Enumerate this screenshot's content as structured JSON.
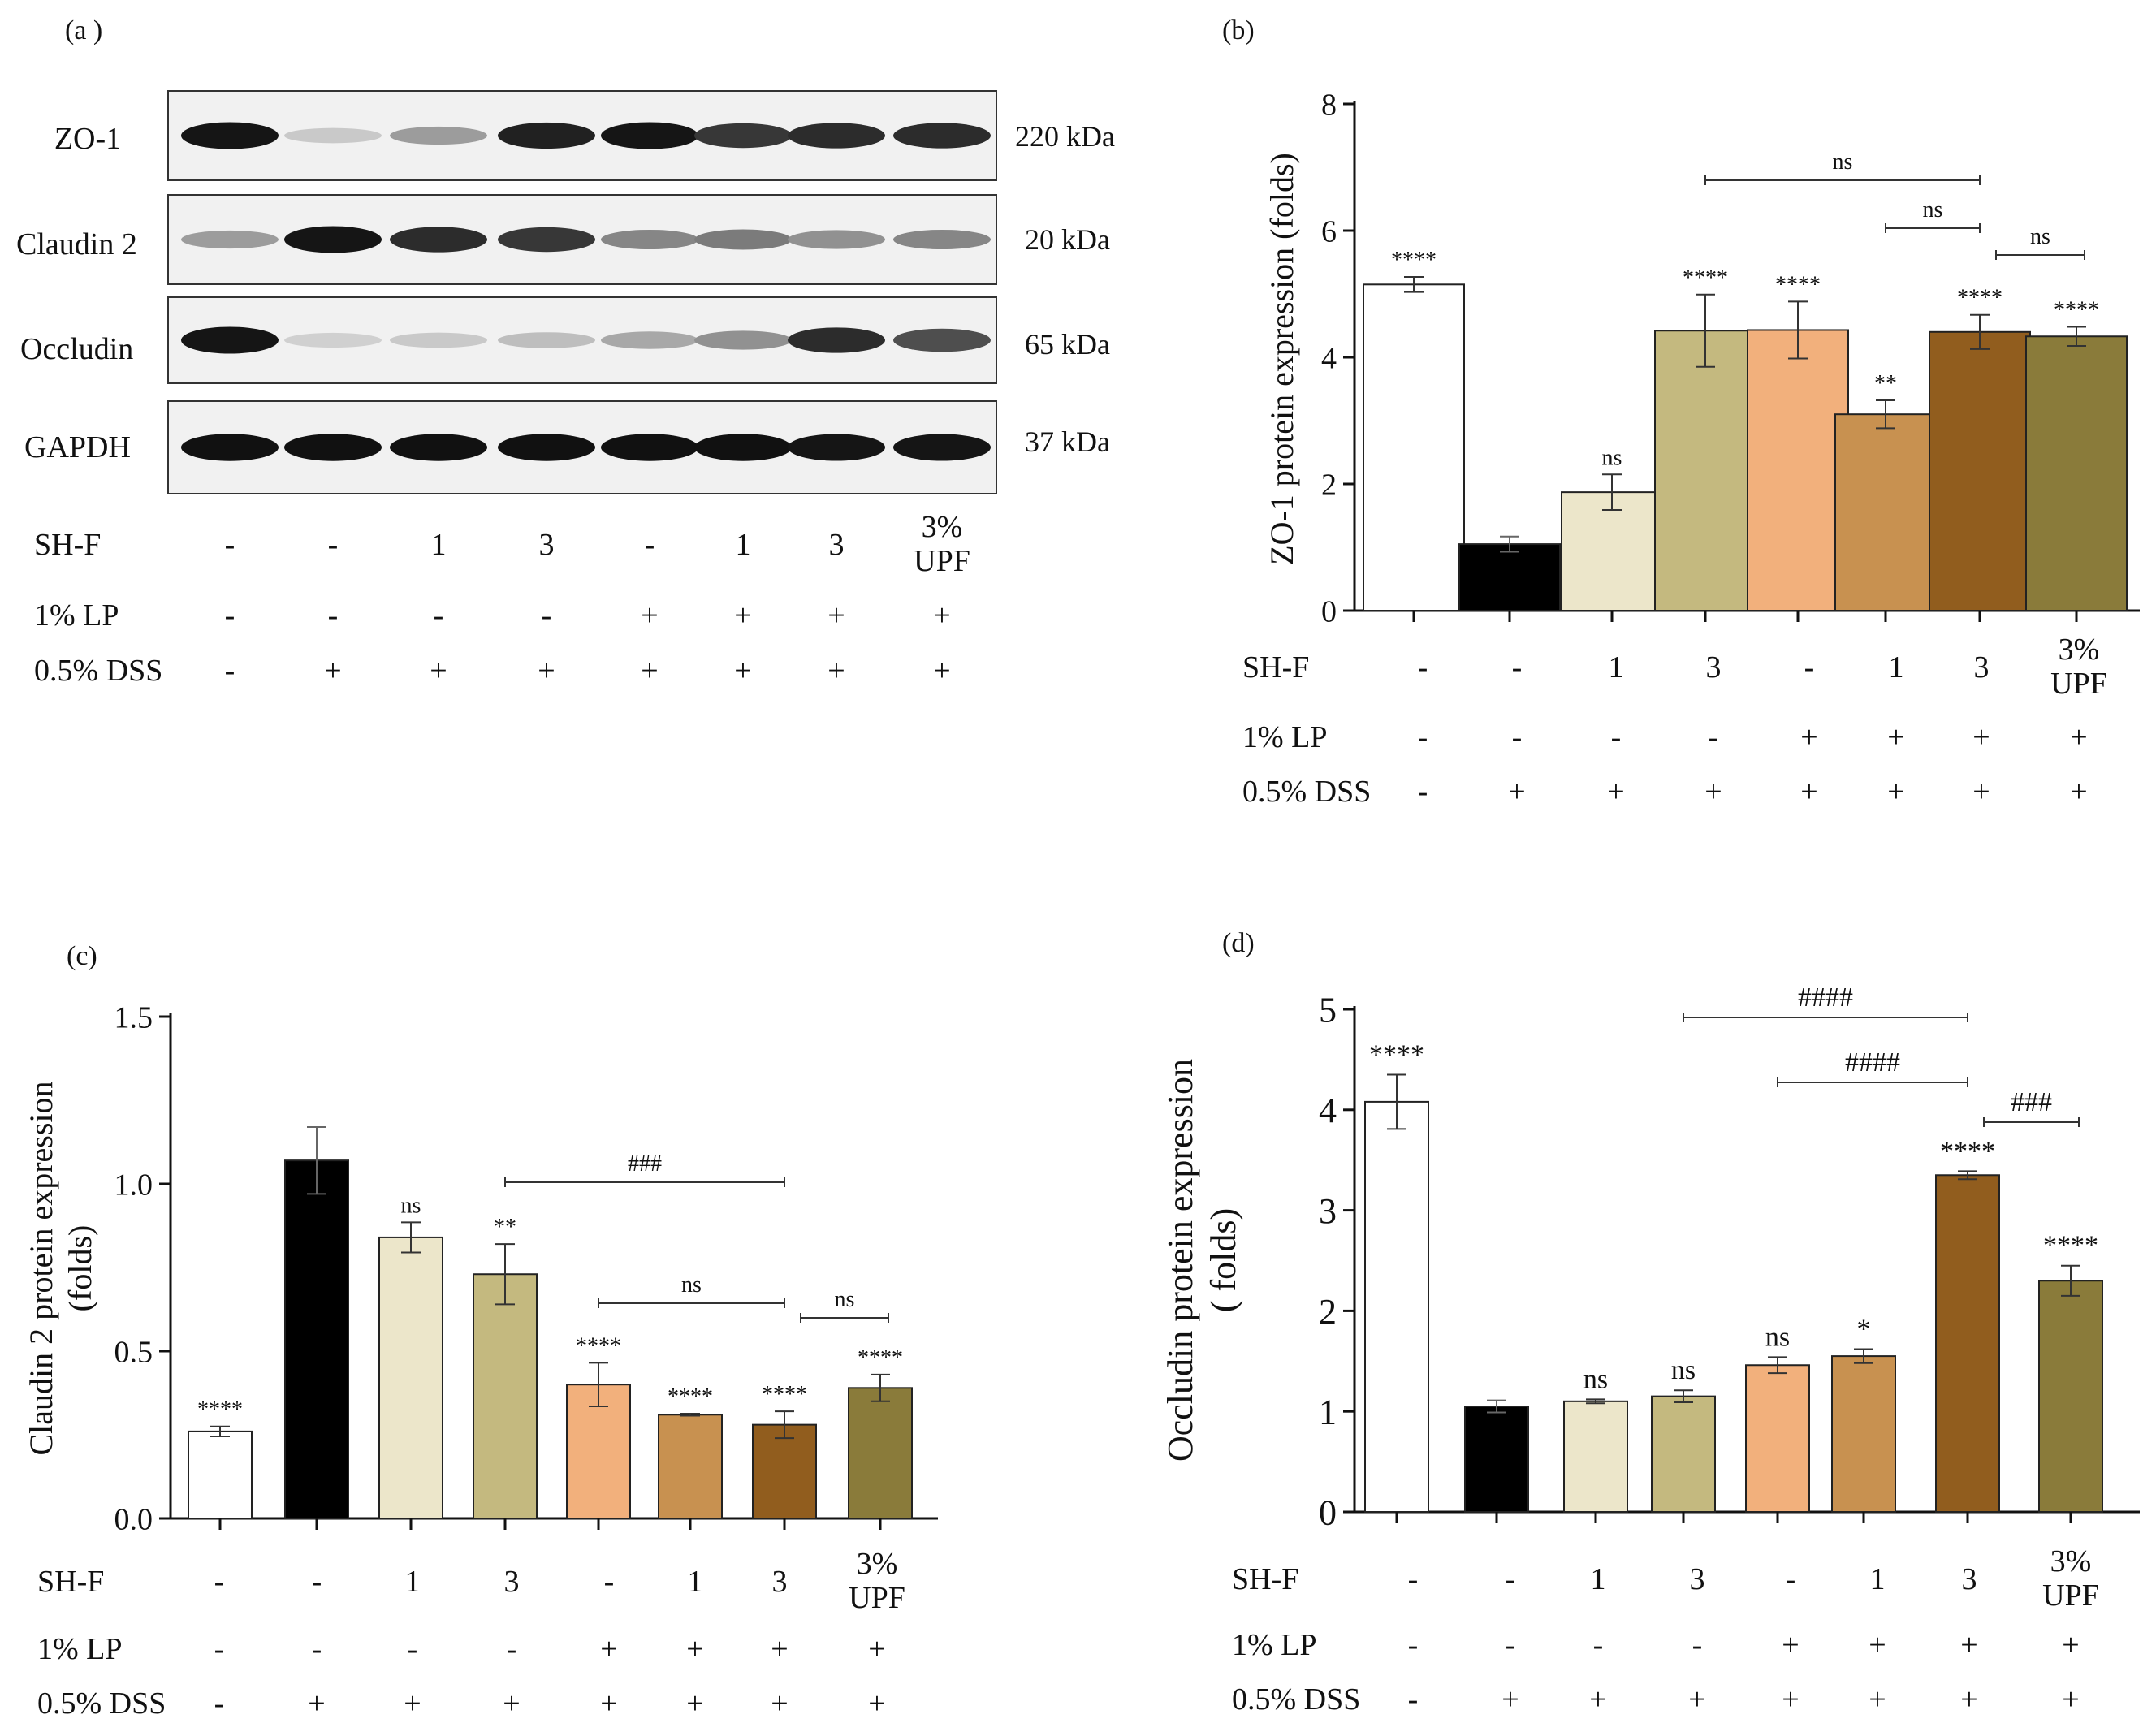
{
  "panels": [
    {
      "id": "a",
      "label": "(a )"
    },
    {
      "id": "b",
      "label": "(b)"
    },
    {
      "id": "c",
      "label": "(c)"
    },
    {
      "id": "d",
      "label": "(d)"
    }
  ],
  "treatments": {
    "rows": [
      {
        "name": "SH-F",
        "values": [
          "-",
          "-",
          "1",
          "3",
          "-",
          "1",
          "3",
          "3%|UPF"
        ]
      },
      {
        "name": "1% LP",
        "values": [
          "-",
          "-",
          "-",
          "-",
          "+",
          "+",
          "+",
          "+"
        ]
      },
      {
        "name": "0.5% DSS",
        "values": [
          "-",
          "+",
          "+",
          "+",
          "+",
          "+",
          "+",
          "+"
        ]
      }
    ]
  },
  "blot": {
    "bands": [
      {
        "protein": "ZO-1",
        "size": "220 kDa",
        "intensity": [
          0.95,
          0.15,
          0.35,
          0.9,
          0.95,
          0.8,
          0.85,
          0.85
        ]
      },
      {
        "protein": "Claudin 2",
        "size": "20 kDa",
        "intensity": [
          0.35,
          0.95,
          0.85,
          0.8,
          0.45,
          0.5,
          0.4,
          0.45
        ]
      },
      {
        "protein": "Occludin",
        "size": "65 kDa",
        "intensity": [
          0.95,
          0.12,
          0.15,
          0.2,
          0.3,
          0.4,
          0.85,
          0.7
        ]
      },
      {
        "protein": "GAPDH",
        "size": "37 kDa",
        "intensity": [
          0.97,
          0.97,
          0.97,
          0.97,
          0.97,
          0.97,
          0.95,
          0.95
        ]
      }
    ]
  },
  "chart_data": [
    {
      "id": "b",
      "type": "bar",
      "ylabel": "ZO-1 protein expression (folds)",
      "ylim": [
        0,
        8
      ],
      "yticks": [
        "0",
        "2",
        "4",
        "6",
        "8"
      ],
      "values": [
        5.15,
        1.05,
        1.87,
        4.42,
        4.43,
        3.1,
        4.4,
        4.33
      ],
      "errors": [
        0.12,
        0.12,
        0.28,
        0.57,
        0.45,
        0.22,
        0.27,
        0.15
      ],
      "sig": [
        "****",
        "",
        "ns",
        "****",
        "****",
        "**",
        "****",
        "****"
      ],
      "brackets": [
        {
          "from": 3,
          "to": 6,
          "label": "ns"
        },
        {
          "from": 5,
          "to": 6,
          "label": "ns"
        },
        {
          "from": 6,
          "to": 7,
          "label": "ns"
        }
      ]
    },
    {
      "id": "c",
      "type": "bar",
      "ylabel": "Claudin 2 protein expression|(folds)",
      "ylim": [
        0,
        1.5
      ],
      "yticks": [
        "0.0",
        "0.5",
        "1.0",
        "1.5"
      ],
      "values": [
        0.26,
        1.07,
        0.84,
        0.73,
        0.4,
        0.31,
        0.28,
        0.39
      ],
      "errors": [
        0.015,
        0.1,
        0.045,
        0.09,
        0.065,
        0.003,
        0.04,
        0.04
      ],
      "sig": [
        "****",
        "",
        "ns",
        "**",
        "****",
        "****",
        "****",
        "****"
      ],
      "brackets": [
        {
          "from": 3,
          "to": 6,
          "label": "###"
        },
        {
          "from": 4,
          "to": 6,
          "label": "ns"
        },
        {
          "from": 6,
          "to": 7,
          "label": "ns"
        }
      ]
    },
    {
      "id": "d",
      "type": "bar",
      "ylabel": "Occludin protein expression|( folds)",
      "ylim": [
        0,
        5
      ],
      "yticks": [
        "0",
        "1",
        "2",
        "3",
        "4",
        "5"
      ],
      "values": [
        4.08,
        1.05,
        1.1,
        1.15,
        1.46,
        1.55,
        3.35,
        2.3
      ],
      "errors": [
        0.27,
        0.06,
        0.02,
        0.06,
        0.08,
        0.07,
        0.04,
        0.15
      ],
      "sig": [
        "****",
        "",
        "ns",
        "ns",
        "ns",
        "*",
        "****",
        "****"
      ],
      "brackets": [
        {
          "from": 3,
          "to": 6,
          "label": "####"
        },
        {
          "from": 4,
          "to": 6,
          "label": "####"
        },
        {
          "from": 6,
          "to": 7,
          "label": "###"
        }
      ]
    }
  ],
  "colors": {
    "bars": [
      "#ffffff",
      "#000000",
      "#ece6ca",
      "#c4b97f",
      "#f2b07c",
      "#c89150",
      "#915d1e",
      "#8a7b3a"
    ],
    "ink": "#111111"
  }
}
